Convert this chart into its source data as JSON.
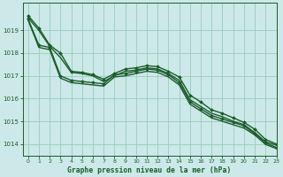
{
  "title": "Graphe pression niveau de la mer (hPa)",
  "background_color": "#cce8e8",
  "grid_color": "#99ccbb",
  "line_color": "#1a5c2a",
  "xlim": [
    -0.5,
    23
  ],
  "ylim": [
    1013.5,
    1020.2
  ],
  "yticks": [
    1014,
    1015,
    1016,
    1017,
    1018,
    1019
  ],
  "xticks": [
    0,
    1,
    2,
    3,
    4,
    5,
    6,
    7,
    8,
    9,
    10,
    11,
    12,
    13,
    14,
    15,
    16,
    17,
    18,
    19,
    20,
    21,
    22,
    23
  ],
  "series": [
    {
      "data": [
        1019.65,
        1019.1,
        1018.35,
        1018.0,
        1017.2,
        1017.15,
        1017.05,
        1016.85,
        1017.1,
        1017.3,
        1017.35,
        1017.45,
        1017.4,
        1017.2,
        1016.95,
        1016.15,
        1015.85,
        1015.5,
        1015.35,
        1015.15,
        1014.95,
        1014.65,
        1014.2,
        1014.0
      ],
      "marker": true,
      "linewidth": 1.0
    },
    {
      "data": [
        1019.55,
        1019.0,
        1018.3,
        1017.8,
        1017.15,
        1017.1,
        1017.0,
        1016.75,
        1017.0,
        1017.2,
        1017.25,
        1017.35,
        1017.3,
        1017.1,
        1016.8,
        1015.95,
        1015.65,
        1015.35,
        1015.2,
        1015.0,
        1014.85,
        1014.5,
        1014.1,
        1013.95
      ],
      "marker": false,
      "linewidth": 1.0
    },
    {
      "data": [
        1019.5,
        1018.35,
        1018.25,
        1017.0,
        1016.8,
        1016.75,
        1016.7,
        1016.65,
        1017.05,
        1017.1,
        1017.2,
        1017.3,
        1017.25,
        1017.05,
        1016.7,
        1015.85,
        1015.55,
        1015.25,
        1015.1,
        1014.95,
        1014.8,
        1014.45,
        1014.05,
        1013.85
      ],
      "marker": true,
      "linewidth": 1.0
    },
    {
      "data": [
        1019.45,
        1018.25,
        1018.15,
        1016.9,
        1016.7,
        1016.65,
        1016.6,
        1016.55,
        1016.95,
        1017.0,
        1017.1,
        1017.2,
        1017.15,
        1016.95,
        1016.6,
        1015.75,
        1015.45,
        1015.15,
        1015.0,
        1014.85,
        1014.7,
        1014.4,
        1013.98,
        1013.8
      ],
      "marker": false,
      "linewidth": 1.0
    }
  ]
}
